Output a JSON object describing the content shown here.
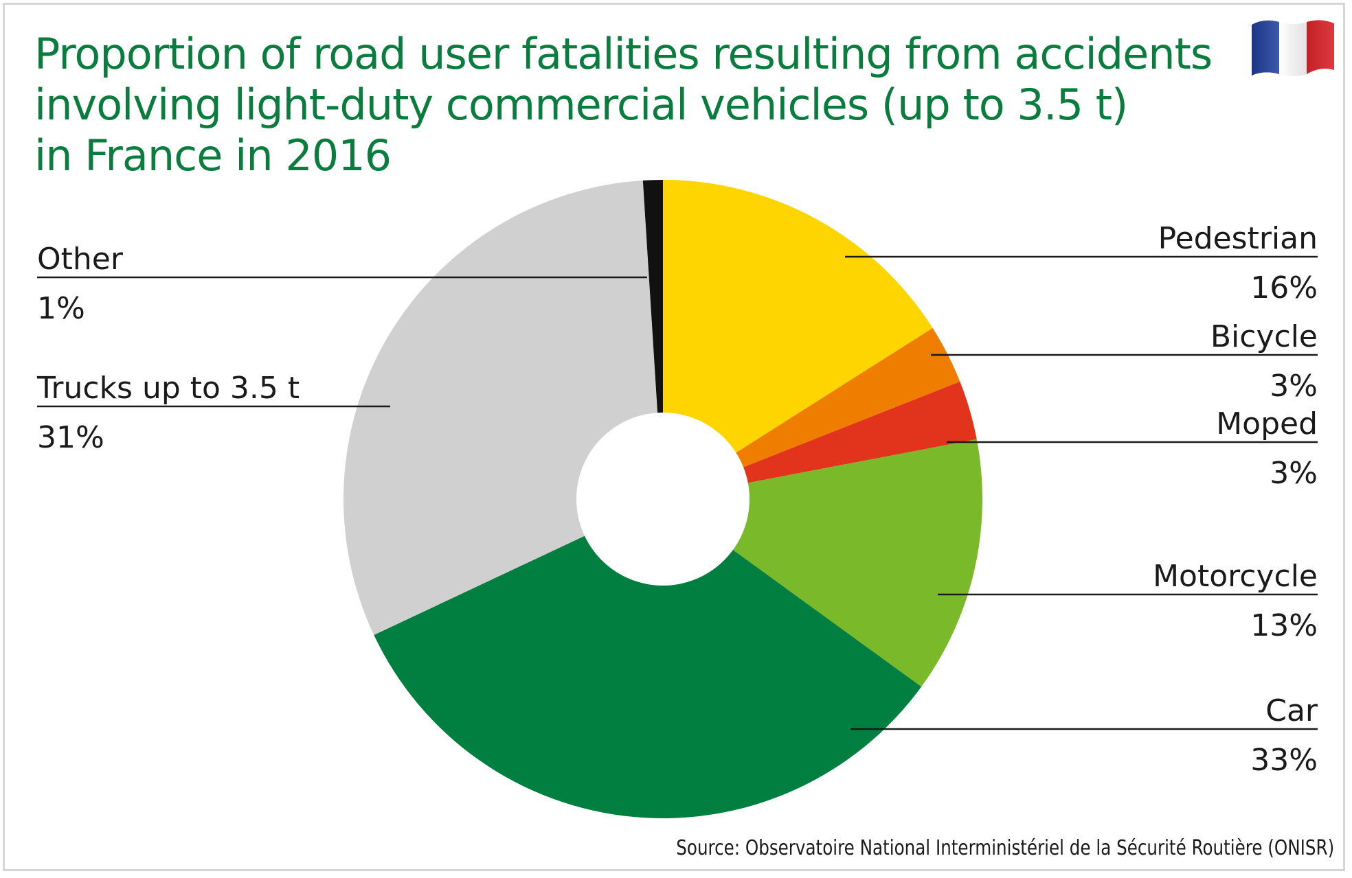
{
  "title_lines": [
    "Proportion of road user fatalities resulting from accidents",
    "involving light-duty commercial vehicles (up to 3.5 t)",
    "in France in 2016"
  ],
  "source": "Source: Observatoire National Interministériel de la Sécurité Routière (ONISR)",
  "flag": {
    "name": "france-flag-icon",
    "colors": [
      "#1f3f9e",
      "#ffffff",
      "#d8232a"
    ]
  },
  "chart_data": {
    "type": "pie",
    "style": "donut",
    "unit": "%",
    "slices": [
      {
        "label": "Pedestrian",
        "value": 16,
        "display": "16%",
        "color": "#ffd500"
      },
      {
        "label": "Bicycle",
        "value": 3,
        "display": "3%",
        "color": "#ef7d00"
      },
      {
        "label": "Moped",
        "value": 3,
        "display": "3%",
        "color": "#e2341d"
      },
      {
        "label": "Motorcycle",
        "value": 13,
        "display": "13%",
        "color": "#7ab929"
      },
      {
        "label": "Car",
        "value": 33,
        "display": "33%",
        "color": "#007f40"
      },
      {
        "label": "Trucks up to 3.5 t",
        "value": 31,
        "display": "31%",
        "color": "#d0d0d0"
      },
      {
        "label": "Other",
        "value": 1,
        "display": "1%",
        "color": "#111111"
      }
    ]
  }
}
